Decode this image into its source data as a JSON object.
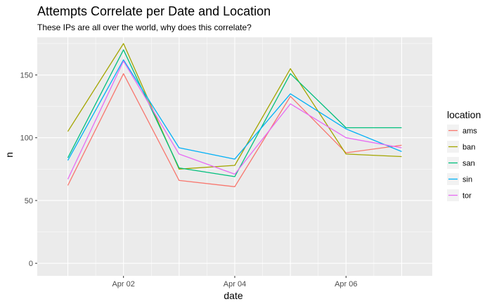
{
  "chart_data": {
    "type": "line",
    "title": "Attempts Correlate per Date and Location",
    "subtitle": "These IPs are all over the world, why does this correlate?",
    "xlabel": "date",
    "ylabel": "n",
    "x": [
      1,
      2,
      3,
      4,
      5,
      6,
      7
    ],
    "x_tick_values": [
      2,
      4,
      6
    ],
    "x_tick_labels": [
      "Apr 02",
      "Apr 04",
      "Apr 06"
    ],
    "xlim": [
      0.45,
      7.55
    ],
    "y_ticks": [
      0,
      50,
      100,
      150
    ],
    "ylim": [
      -10,
      180
    ],
    "grid": true,
    "legend_title": "location",
    "legend_position": "right",
    "series": [
      {
        "name": "ams",
        "color": "#F8766D",
        "values": [
          62,
          151,
          66,
          61,
          133,
          88,
          94
        ]
      },
      {
        "name": "ban",
        "color": "#A3A500",
        "values": [
          105,
          175,
          75,
          78,
          155,
          87,
          85
        ]
      },
      {
        "name": "san",
        "color": "#00BF7D",
        "values": [
          84,
          170,
          76,
          69,
          151,
          108,
          108
        ]
      },
      {
        "name": "sin",
        "color": "#00B0F6",
        "values": [
          82,
          162,
          92,
          83,
          135,
          107,
          89
        ]
      },
      {
        "name": "tor",
        "color": "#E76BF3",
        "values": [
          67,
          161,
          87,
          71,
          127,
          100,
          92
        ]
      }
    ]
  }
}
